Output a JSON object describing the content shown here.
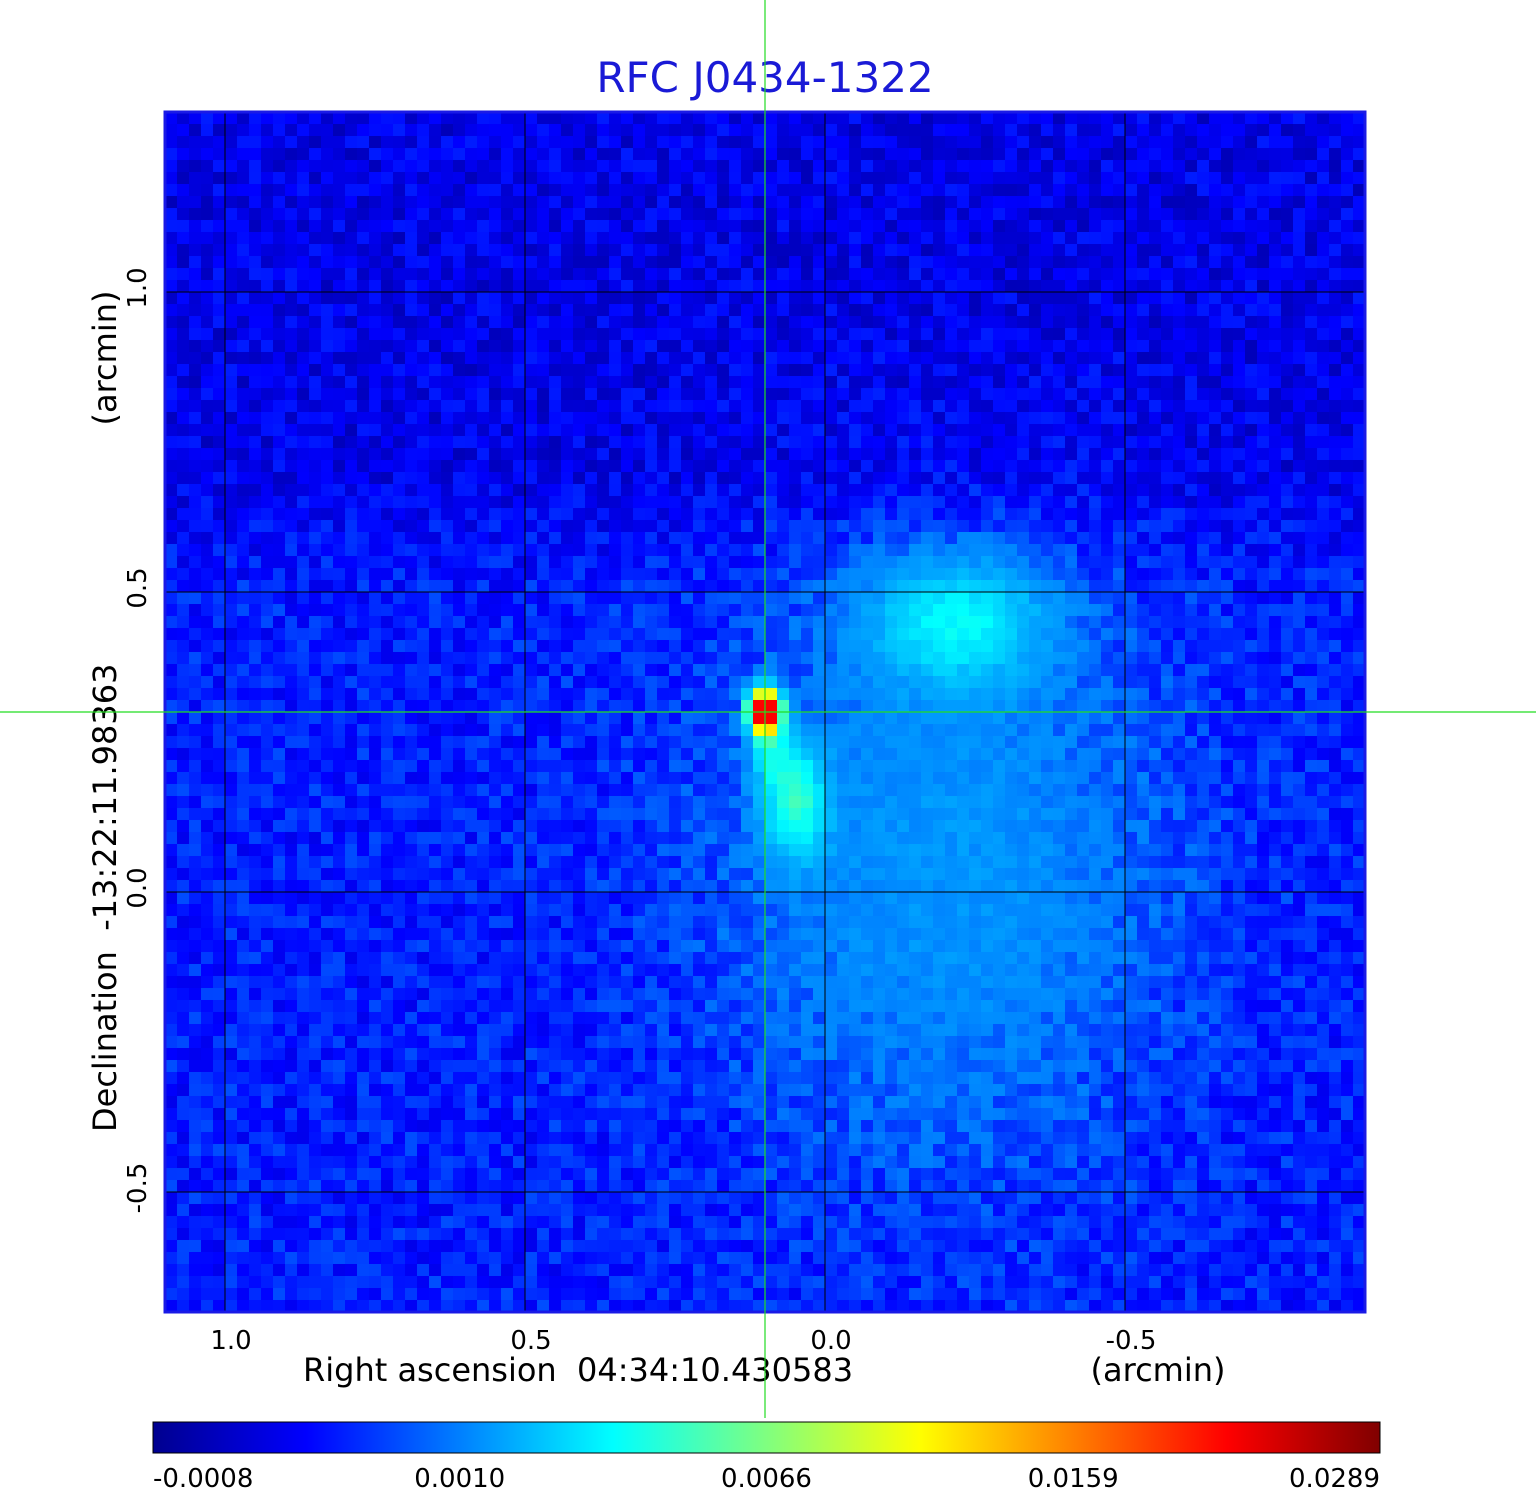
{
  "chart_data": {
    "type": "heatmap",
    "title": "RFC J0434-1322",
    "xlabel": "Right ascension  04:34:10.430583",
    "xunit": "(arcmin)",
    "ylabel": "Declination  -13:22:11.98363",
    "yunit": "(arcmin)",
    "xlim": [
      1.1,
      -0.9
    ],
    "ylim": [
      -0.7,
      1.3
    ],
    "x_ticks": [
      1.0,
      0.5,
      0.0,
      -0.5
    ],
    "x_tick_labels": [
      "1.0",
      "0.5",
      "0.0",
      "-0.5"
    ],
    "y_ticks": [
      1.0,
      0.5,
      0.0,
      -0.5
    ],
    "y_tick_labels": [
      "1.0",
      "0.5",
      "0.0",
      "-0.5"
    ],
    "grid": true,
    "crosshair": {
      "x": 0.1,
      "y": 0.3
    },
    "colormap": "jet",
    "colorbar": {
      "tick_labels": [
        "-0.0008",
        "0.0010",
        "0.0066",
        "0.0159",
        "0.0289"
      ],
      "range": [
        -0.0008,
        0.0289
      ],
      "placement": "bottom"
    },
    "features": [
      {
        "name": "core",
        "x": 0.1,
        "y": 0.3,
        "peak": 0.0289
      },
      {
        "name": "southern jet",
        "x": 0.05,
        "y": 0.15,
        "level": 0.004
      },
      {
        "name": "north-western lobe",
        "x": -0.22,
        "y": 0.45,
        "level": 0.003
      }
    ],
    "colors": {
      "title": "#1a1ad6",
      "frame": "#1a1ae6",
      "crosshair": "#22dd22",
      "grid": "#000000"
    }
  }
}
